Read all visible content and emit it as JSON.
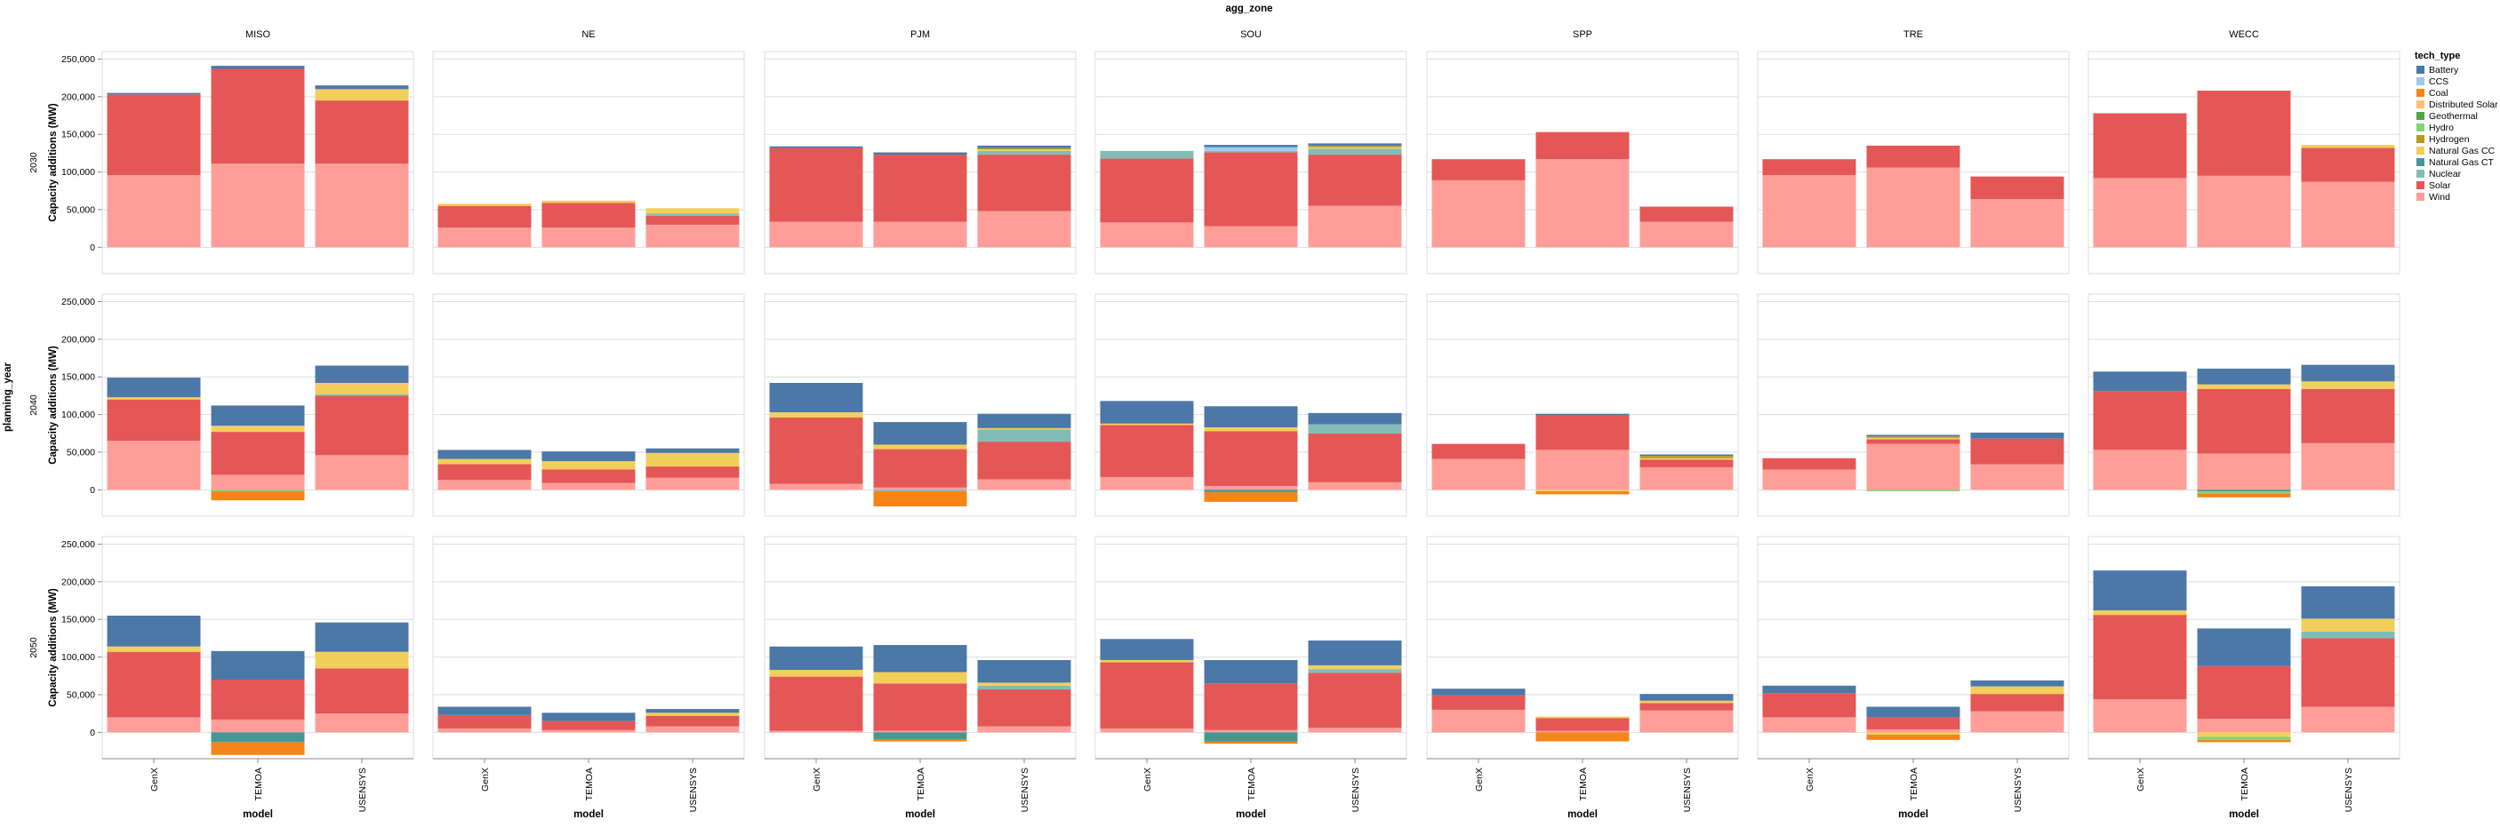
{
  "chart_data": {
    "type": "bar",
    "stacked": true,
    "facet_column_title": "agg_zone",
    "facet_row_title": "planning_year",
    "zones": [
      "MISO",
      "NE",
      "PJM",
      "SOU",
      "SPP",
      "TRE",
      "WECC"
    ],
    "years": [
      "2030",
      "2040",
      "2050"
    ],
    "models": [
      "GenX",
      "TEMOA",
      "USENSYS"
    ],
    "xlabel": "model",
    "ylabel": "Capacity additions (MW)",
    "ylim": [
      -35000,
      260000
    ],
    "yticks": [
      0,
      50000,
      100000,
      150000,
      200000,
      250000
    ],
    "ytick_labels": [
      "0",
      "50,000",
      "100,000",
      "150,000",
      "200,000",
      "250,000"
    ],
    "grid": true,
    "legend_title": "tech_type",
    "legend_position": "right",
    "tech_types": [
      "Battery",
      "CCS",
      "Coal",
      "Distributed Solar",
      "Geothermal",
      "Hydro",
      "Hydrogen",
      "Natural Gas CC",
      "Natural Gas CT",
      "Nuclear",
      "Solar",
      "Wind"
    ],
    "colors": {
      "Battery": "#4c78a8",
      "CCS": "#9ecae9",
      "Coal": "#f58518",
      "Distributed Solar": "#ffbf79",
      "Geothermal": "#54a24b",
      "Hydro": "#88d27a",
      "Hydrogen": "#b79a20",
      "Natural Gas CC": "#f2cf5b",
      "Natural Gas CT": "#439894",
      "Nuclear": "#83bcb6",
      "Solar": "#e45756",
      "Wind": "#ff9d98"
    },
    "stack_order": [
      "Wind",
      "Solar",
      "Nuclear",
      "Natural Gas CT",
      "Natural Gas CC",
      "Hydrogen",
      "Hydro",
      "Geothermal",
      "Distributed Solar",
      "Coal",
      "CCS",
      "Battery"
    ],
    "values": {
      "2030": {
        "MISO": {
          "GenX": {
            "Wind": 96000,
            "Solar": 107000,
            "Battery": 2000
          },
          "TEMOA": {
            "Wind": 111000,
            "Solar": 126000,
            "Battery": 4000
          },
          "USENSYS": {
            "Wind": 111000,
            "Solar": 84000,
            "Natural Gas CC": 15000,
            "Battery": 5000
          }
        },
        "NE": {
          "GenX": {
            "Wind": 26000,
            "Solar": 29000,
            "Natural Gas CC": 3000
          },
          "TEMOA": {
            "Wind": 26000,
            "Solar": 33000,
            "Natural Gas CC": 3000
          },
          "USENSYS": {
            "Wind": 30000,
            "Solar": 12000,
            "Nuclear": 3000,
            "Natural Gas CC": 7000
          }
        },
        "PJM": {
          "GenX": {
            "Wind": 34000,
            "Solar": 98000,
            "Battery": 2000
          },
          "TEMOA": {
            "Wind": 34000,
            "Solar": 89000,
            "Battery": 3000
          },
          "USENSYS": {
            "Wind": 48000,
            "Solar": 75000,
            "Nuclear": 5000,
            "Natural Gas CC": 2000,
            "Hydrogen": 2000,
            "Battery": 3000
          }
        },
        "SOU": {
          "GenX": {
            "Wind": 33000,
            "Solar": 85000,
            "Nuclear": 10000
          },
          "TEMOA": {
            "Wind": 28000,
            "Solar": 98000,
            "Nuclear": 2000,
            "CCS": 5000,
            "Battery": 3000
          },
          "USENSYS": {
            "Wind": 55000,
            "Solar": 68000,
            "Nuclear": 8000,
            "Natural Gas CC": 2000,
            "Hydrogen": 2000,
            "Battery": 3000
          }
        },
        "SPP": {
          "GenX": {
            "Wind": 89000,
            "Solar": 28000
          },
          "TEMOA": {
            "Wind": 117000,
            "Solar": 36000
          },
          "USENSYS": {
            "Wind": 34000,
            "Solar": 20000
          }
        },
        "TRE": {
          "GenX": {
            "Wind": 96000,
            "Solar": 21000
          },
          "TEMOA": {
            "Wind": 106000,
            "Solar": 29000
          },
          "USENSYS": {
            "Wind": 64000,
            "Solar": 30000
          }
        },
        "WECC": {
          "GenX": {
            "Wind": 92000,
            "Solar": 86000
          },
          "TEMOA": {
            "Wind": 95000,
            "Solar": 113000
          },
          "USENSYS": {
            "Wind": 87000,
            "Solar": 45000,
            "Natural Gas CC": 4000
          }
        }
      },
      "2040": {
        "MISO": {
          "GenX": {
            "Wind": 65000,
            "Solar": 55000,
            "Natural Gas CC": 3000,
            "Battery": 26000
          },
          "TEMOA": {
            "Wind": 20000,
            "Solar": 57000,
            "Natural Gas CC": 7000,
            "Distributed Solar": 1000,
            "Battery": 27000,
            "Coal": -12000,
            "Hydro": -2000
          },
          "USENSYS": {
            "Wind": 46000,
            "Solar": 79000,
            "Nuclear": 2000,
            "Natural Gas CC": 12000,
            "Distributed Solar": 3000,
            "Battery": 23000
          }
        },
        "NE": {
          "GenX": {
            "Wind": 13000,
            "Solar": 21000,
            "Natural Gas CC": 7000,
            "Battery": 12000
          },
          "TEMOA": {
            "Wind": 9000,
            "Solar": 18000,
            "Natural Gas CC": 11000,
            "Battery": 13000
          },
          "USENSYS": {
            "Wind": 16000,
            "Solar": 15000,
            "Natural Gas CC": 18000,
            "Battery": 6000
          }
        },
        "PJM": {
          "GenX": {
            "Wind": 8000,
            "Solar": 88000,
            "Natural Gas CC": 7000,
            "Battery": 39000
          },
          "TEMOA": {
            "Wind": 3000,
            "Solar": 51000,
            "Natural Gas CC": 6000,
            "Battery": 30000,
            "Coal": -20000,
            "Nuclear": -2000
          },
          "USENSYS": {
            "Wind": 14000,
            "Solar": 50000,
            "Nuclear": 16000,
            "Natural Gas CC": 2000,
            "Battery": 19000
          }
        },
        "SOU": {
          "GenX": {
            "Wind": 17000,
            "Solar": 69000,
            "Natural Gas CC": 2000,
            "Battery": 30000
          },
          "TEMOA": {
            "Wind": 5000,
            "Solar": 73000,
            "Natural Gas CC": 5000,
            "Battery": 28000,
            "Coal": -13000,
            "Natural Gas CT": -3000
          },
          "USENSYS": {
            "Wind": 10000,
            "Solar": 65000,
            "Nuclear": 12000,
            "Battery": 15000
          }
        },
        "SPP": {
          "GenX": {
            "Wind": 41000,
            "Solar": 20000
          },
          "TEMOA": {
            "Wind": 53000,
            "Solar": 46000,
            "Battery": 2000,
            "Coal": -4000,
            "Natural Gas CC": -2000
          },
          "USENSYS": {
            "Wind": 30000,
            "Solar": 10000,
            "Natural Gas CC": 2000,
            "Hydrogen": 3000,
            "Battery": 2000
          }
        },
        "TRE": {
          "GenX": {
            "Wind": 27000,
            "Solar": 15000
          },
          "TEMOA": {
            "Wind": 61000,
            "Solar": 6000,
            "Natural Gas CC": 2000,
            "Hydrogen": 2000,
            "Battery": 2000,
            "Hydro": -2000
          },
          "USENSYS": {
            "Wind": 34000,
            "Solar": 34000,
            "Battery": 8000
          }
        },
        "WECC": {
          "GenX": {
            "Wind": 53000,
            "Solar": 78000,
            "Battery": 26000
          },
          "TEMOA": {
            "Wind": 48000,
            "Solar": 86000,
            "Natural Gas CC": 6000,
            "Battery": 21000,
            "Coal": -5000,
            "Hydro": -3000,
            "Natural Gas CT": -2000
          },
          "USENSYS": {
            "Wind": 62000,
            "Solar": 72000,
            "Natural Gas CC": 10000,
            "Battery": 22000
          }
        }
      },
      "2050": {
        "MISO": {
          "GenX": {
            "Wind": 20000,
            "Solar": 87000,
            "Natural Gas CC": 7000,
            "Battery": 41000
          },
          "TEMOA": {
            "Wind": 17000,
            "Solar": 53000,
            "Battery": 38000,
            "Natural Gas CT": -13000,
            "Coal": -17000
          },
          "USENSYS": {
            "Wind": 25000,
            "Solar": 60000,
            "Natural Gas CC": 22000,
            "Battery": 39000
          }
        },
        "NE": {
          "GenX": {
            "Wind": 5000,
            "Solar": 18000,
            "Battery": 11000
          },
          "TEMOA": {
            "Wind": 3000,
            "Solar": 12000,
            "Battery": 11000
          },
          "USENSYS": {
            "Wind": 8000,
            "Solar": 14000,
            "Natural Gas CC": 4000,
            "Battery": 5000
          }
        },
        "PJM": {
          "GenX": {
            "Wind": 2000,
            "Solar": 72000,
            "Natural Gas CC": 9000,
            "Battery": 31000
          },
          "TEMOA": {
            "Wind": 2000,
            "Solar": 63000,
            "Natural Gas CC": 15000,
            "Battery": 36000,
            "Natural Gas CT": -9000,
            "Coal": -3000
          },
          "USENSYS": {
            "Wind": 8000,
            "Solar": 49000,
            "Nuclear": 5000,
            "Natural Gas CC": 4000,
            "Battery": 30000
          }
        },
        "SOU": {
          "GenX": {
            "Wind": 5000,
            "Solar": 88000,
            "Natural Gas CC": 3000,
            "Battery": 28000
          },
          "TEMOA": {
            "Wind": 3000,
            "Solar": 62000,
            "Battery": 31000,
            "Natural Gas CT": -12000,
            "Coal": -3000
          },
          "USENSYS": {
            "Wind": 6000,
            "Solar": 73000,
            "Nuclear": 5000,
            "Natural Gas CC": 5000,
            "Battery": 33000
          }
        },
        "SPP": {
          "GenX": {
            "Wind": 30000,
            "Solar": 19000,
            "Battery": 9000
          },
          "TEMOA": {
            "Wind": 2000,
            "Solar": 17000,
            "Natural Gas CC": 2000,
            "Coal": -12000
          },
          "USENSYS": {
            "Wind": 29000,
            "Solar": 10000,
            "Natural Gas CC": 3000,
            "Battery": 9000
          }
        },
        "TRE": {
          "GenX": {
            "Wind": 20000,
            "Solar": 32000,
            "Battery": 10000
          },
          "TEMOA": {
            "Wind": 4000,
            "Solar": 16000,
            "Battery": 14000,
            "Natural Gas CC": -3000,
            "Coal": -7000
          },
          "USENSYS": {
            "Wind": 28000,
            "Solar": 23000,
            "Natural Gas CC": 10000,
            "Battery": 8000
          }
        },
        "WECC": {
          "GenX": {
            "Wind": 44000,
            "Solar": 112000,
            "Natural Gas CC": 6000,
            "Battery": 53000
          },
          "TEMOA": {
            "Wind": 18000,
            "Solar": 70000,
            "Battery": 50000,
            "Hydro": -4000,
            "Natural Gas CC": -6000,
            "Coal": -3000
          },
          "USENSYS": {
            "Wind": 34000,
            "Solar": 91000,
            "Nuclear": 9000,
            "Natural Gas CC": 17000,
            "Battery": 43000
          }
        }
      }
    }
  }
}
